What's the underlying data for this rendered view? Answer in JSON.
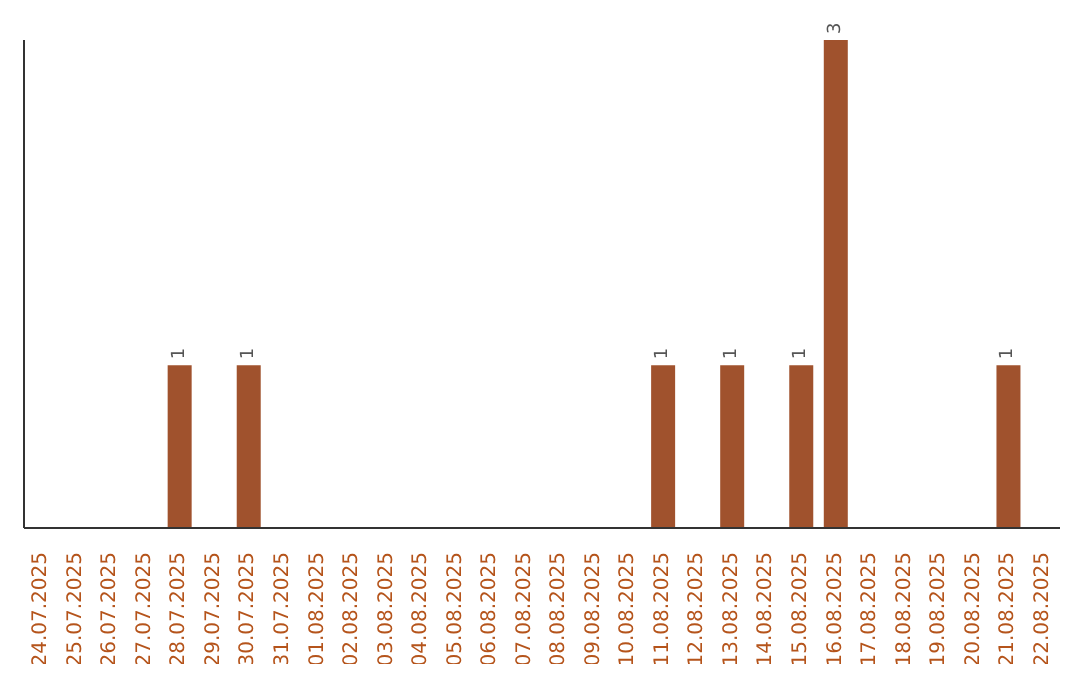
{
  "chart_data": {
    "type": "bar",
    "categories": [
      "24.07.2025",
      "25.07.2025",
      "26.07.2025",
      "27.07.2025",
      "28.07.2025",
      "29.07.2025",
      "30.07.2025",
      "31.07.2025",
      "01.08.2025",
      "02.08.2025",
      "03.08.2025",
      "04.08.2025",
      "05.08.2025",
      "06.08.2025",
      "07.08.2025",
      "08.08.2025",
      "09.08.2025",
      "10.08.2025",
      "11.08.2025",
      "12.08.2025",
      "13.08.2025",
      "14.08.2025",
      "15.08.2025",
      "16.08.2025",
      "17.08.2025",
      "18.08.2025",
      "19.08.2025",
      "20.08.2025",
      "21.08.2025",
      "22.08.2025"
    ],
    "values": [
      0,
      0,
      0,
      0,
      1,
      0,
      1,
      0,
      0,
      0,
      0,
      0,
      0,
      0,
      0,
      0,
      0,
      0,
      1,
      0,
      1,
      0,
      1,
      3,
      0,
      0,
      0,
      0,
      1,
      0
    ],
    "value_labels": [
      null,
      null,
      null,
      null,
      "1",
      null,
      "1",
      null,
      null,
      null,
      null,
      null,
      null,
      null,
      null,
      null,
      null,
      null,
      "1",
      null,
      "1",
      null,
      "1",
      "3",
      null,
      null,
      null,
      null,
      "1",
      null
    ],
    "color": "#a0522d",
    "ylim": [
      0,
      3
    ],
    "tick_labels": "x",
    "grid": false
  }
}
